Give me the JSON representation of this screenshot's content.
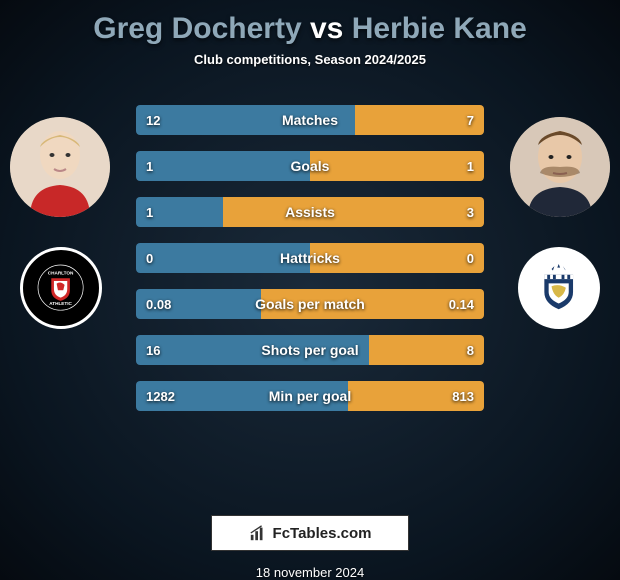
{
  "title": {
    "player1": "Greg Docherty",
    "vs": "vs",
    "player2": "Herbie Kane"
  },
  "subtitle": "Club competitions, Season 2024/2025",
  "colors": {
    "bar_left": "#3c7aa0",
    "bar_right": "#e8a23a",
    "title_accent": "#8fa8b8"
  },
  "bars": [
    {
      "label": "Matches",
      "left_val": "12",
      "right_val": "7",
      "left_pct": 63,
      "right_pct": 37
    },
    {
      "label": "Goals",
      "left_val": "1",
      "right_val": "1",
      "left_pct": 50,
      "right_pct": 50
    },
    {
      "label": "Assists",
      "left_val": "1",
      "right_val": "3",
      "left_pct": 25,
      "right_pct": 75
    },
    {
      "label": "Hattricks",
      "left_val": "0",
      "right_val": "0",
      "left_pct": 50,
      "right_pct": 50
    },
    {
      "label": "Goals per match",
      "left_val": "0.08",
      "right_val": "0.14",
      "left_pct": 36,
      "right_pct": 64
    },
    {
      "label": "Shots per goal",
      "left_val": "16",
      "right_val": "8",
      "left_pct": 67,
      "right_pct": 33
    },
    {
      "label": "Min per goal",
      "left_val": "1282",
      "right_val": "813",
      "left_pct": 61,
      "right_pct": 39
    }
  ],
  "footer": {
    "site": "FcTables.com",
    "date": "18 november 2024"
  },
  "avatars": {
    "left_name": "greg-docherty-headshot",
    "right_name": "herbie-kane-headshot"
  },
  "crests": {
    "left_name": "charlton-athletic-crest",
    "right_name": "huddersfield-town-crest"
  }
}
